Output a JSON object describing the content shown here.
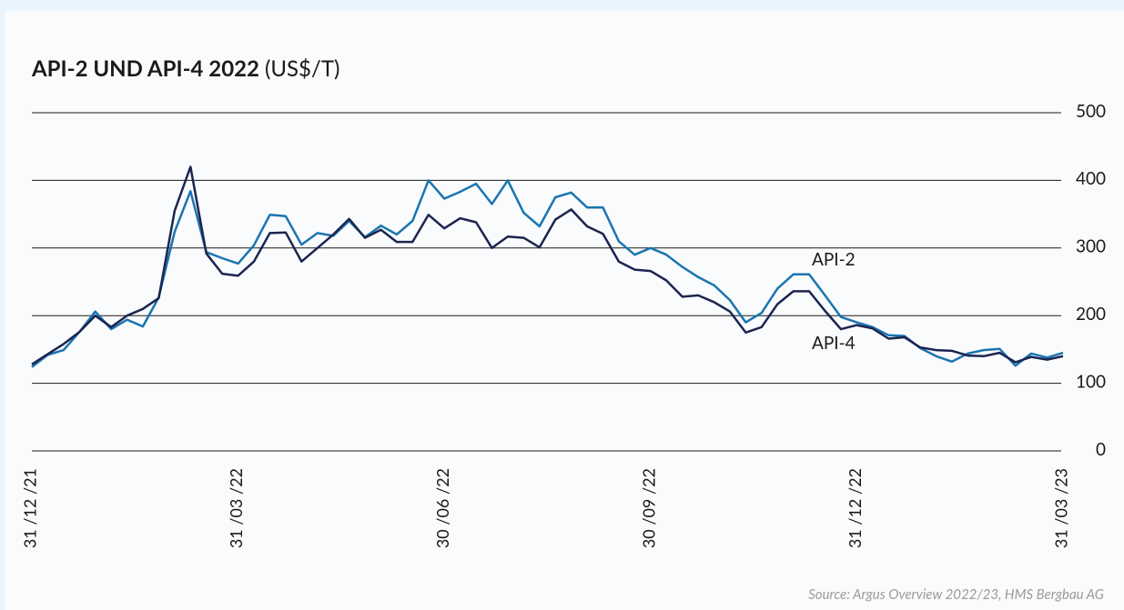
{
  "chart_data": {
    "type": "line",
    "title": "API-2 UND API-4 2022",
    "title_unit": "(US$/T)",
    "source": "Source: Argus Overview 2022/23, HMS Bergbau AG",
    "categories": [
      "31 /12 /21",
      null,
      null,
      null,
      null,
      null,
      null,
      null,
      null,
      null,
      null,
      null,
      null,
      "31 /03 /22",
      null,
      null,
      null,
      null,
      null,
      null,
      null,
      null,
      null,
      null,
      null,
      null,
      "30 /06 /22",
      null,
      null,
      null,
      null,
      null,
      null,
      null,
      null,
      null,
      null,
      null,
      null,
      "30 /09 /22",
      null,
      null,
      null,
      null,
      null,
      null,
      null,
      null,
      null,
      null,
      null,
      null,
      "31 /12 /22",
      null,
      null,
      null,
      null,
      null,
      null,
      null,
      null,
      null,
      null,
      null,
      null,
      "31 /03 /23"
    ],
    "series": [
      {
        "name": "API-2",
        "color": "#1a75b0",
        "values": [
          124,
          142,
          149,
          176,
          206,
          180,
          194,
          184,
          227,
          324,
          384,
          294,
          285,
          277,
          304,
          349,
          347,
          305,
          322,
          318,
          340,
          316,
          333,
          320,
          340,
          400,
          373,
          383,
          395,
          365,
          400,
          352,
          332,
          375,
          382,
          360,
          360,
          310,
          290,
          300,
          290,
          272,
          257,
          245,
          223,
          190,
          204,
          240,
          261,
          261,
          230,
          198,
          190,
          183,
          171,
          170,
          152,
          140,
          132,
          144,
          149,
          151,
          126,
          144,
          138,
          145
        ]
      },
      {
        "name": "API-4",
        "color": "#1b2550",
        "values": [
          128,
          143,
          158,
          176,
          200,
          183,
          200,
          210,
          226,
          355,
          420,
          292,
          262,
          259,
          280,
          322,
          323,
          280,
          300,
          320,
          343,
          315,
          327,
          309,
          309,
          349,
          329,
          344,
          338,
          300,
          317,
          315,
          301,
          342,
          357,
          332,
          321,
          280,
          268,
          266,
          252,
          228,
          230,
          220,
          206,
          175,
          183,
          217,
          236,
          236,
          207,
          180,
          186,
          181,
          166,
          168,
          153,
          149,
          148,
          141,
          140,
          145,
          131,
          139,
          135,
          140
        ]
      }
    ],
    "ylim": [
      0,
      500
    ],
    "yticks": [
      0,
      100,
      200,
      300,
      400,
      500
    ],
    "grid": true
  }
}
